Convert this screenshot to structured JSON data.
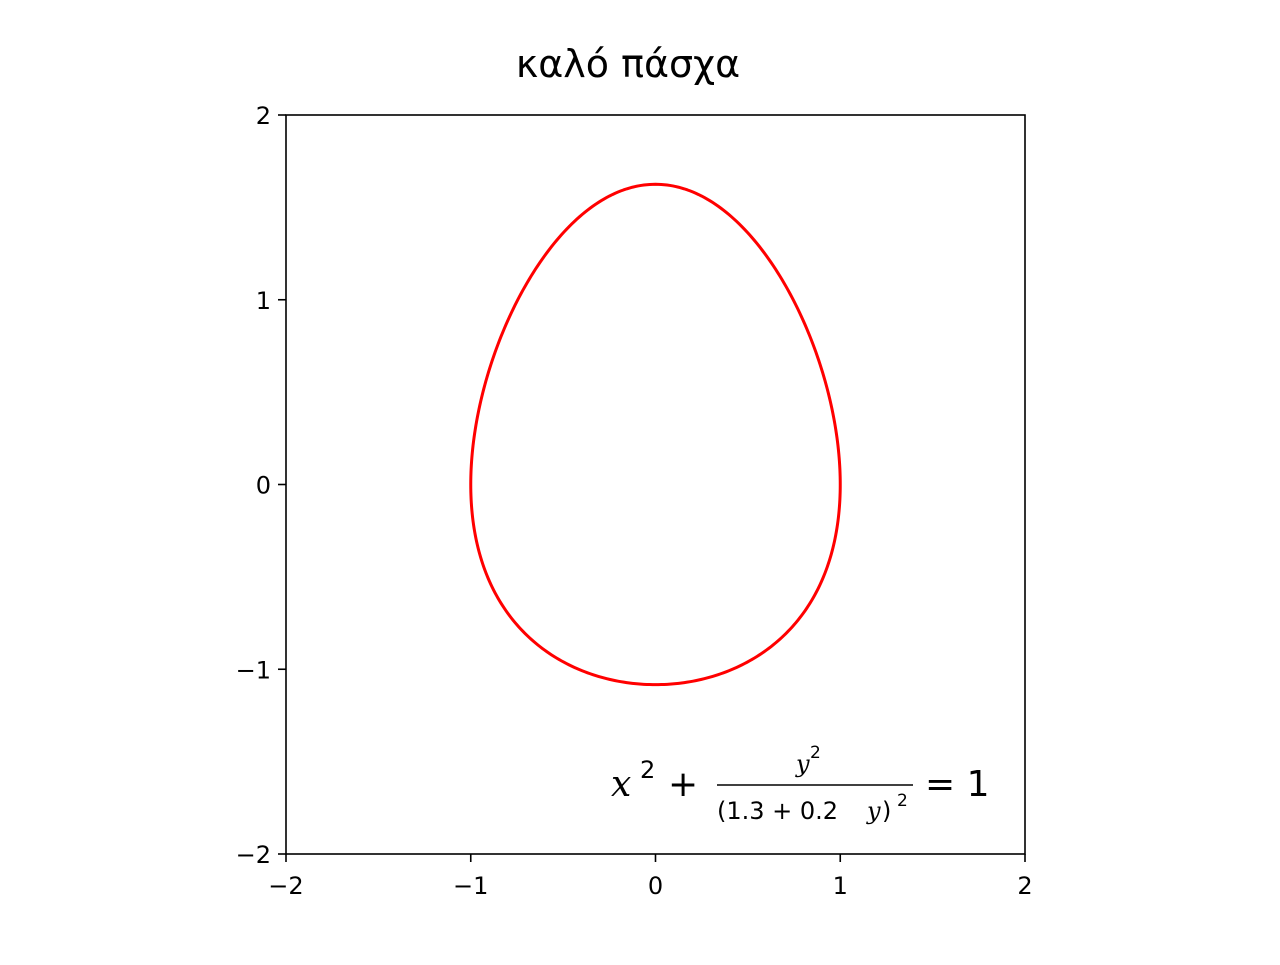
{
  "chart_data": {
    "type": "line",
    "title": "καλό πάσχα",
    "xlabel": "",
    "ylabel": "",
    "xlim": [
      -2,
      2
    ],
    "ylim": [
      -2,
      2
    ],
    "x_ticks": [
      -2,
      -1,
      0,
      1,
      2
    ],
    "y_ticks": [
      -2,
      -1,
      0,
      1,
      2
    ],
    "x_tick_labels": [
      "−2",
      "−1",
      "0",
      "1",
      "2"
    ],
    "y_tick_labels": [
      "−2",
      "−1",
      "0",
      "1",
      "2"
    ],
    "grid": false,
    "aspect": "equal",
    "series": [
      {
        "equation": "x^2 + y^2/(1.3+0.2y)^2 = 1",
        "color": "#ff0000",
        "x_extent": [
          -1.0,
          1.0
        ],
        "y_extent": [
          -1.083,
          1.625
        ]
      }
    ],
    "annotation": {
      "lhs_var": "x",
      "lhs_sup": "2",
      "plus": "+",
      "num_var": "y",
      "num_sup": "2",
      "den_open": "(1.3 + 0.2",
      "den_var": "y",
      "den_close": ")",
      "den_sup": "2",
      "equals": "= 1",
      "position": "bottom-right"
    }
  }
}
